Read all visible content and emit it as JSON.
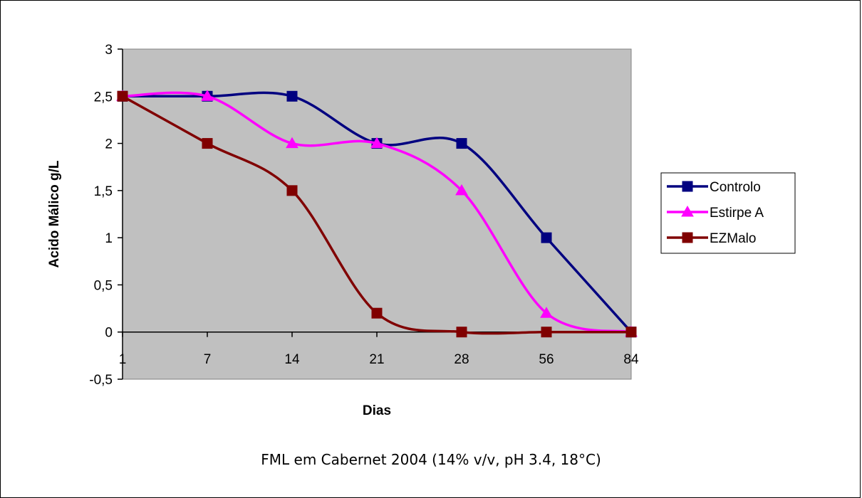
{
  "chart_data": {
    "type": "line",
    "title": "",
    "xlabel": "Dias",
    "ylabel": "Acido Málico g/L",
    "categories": [
      "1",
      "7",
      "14",
      "21",
      "28",
      "56",
      "84"
    ],
    "ylim": [
      -0.5,
      3
    ],
    "yticks": [
      "-0,5",
      "0",
      "0,5",
      "1",
      "1,5",
      "2",
      "2,5",
      "3"
    ],
    "ytick_values": [
      -0.5,
      0,
      0.5,
      1,
      1.5,
      2,
      2.5,
      3
    ],
    "grid": false,
    "background": "#c0c0c0",
    "legend_position": "right",
    "series": [
      {
        "name": "Controlo",
        "values": [
          2.5,
          2.5,
          2.5,
          2.0,
          2.0,
          1.0,
          0.0
        ],
        "color": "#000080",
        "marker": "square"
      },
      {
        "name": "Estirpe A",
        "values": [
          2.5,
          2.5,
          2.0,
          2.0,
          1.5,
          0.2,
          0.0
        ],
        "color": "#ff00ff",
        "marker": "triangle"
      },
      {
        "name": "EZMalo",
        "values": [
          2.5,
          2.0,
          1.5,
          0.2,
          0.0,
          0.0,
          0.0
        ],
        "color": "#800000",
        "marker": "square"
      }
    ]
  },
  "caption": "FML em Cabernet 2004 (14% v/v, pH 3.4, 18°C)"
}
